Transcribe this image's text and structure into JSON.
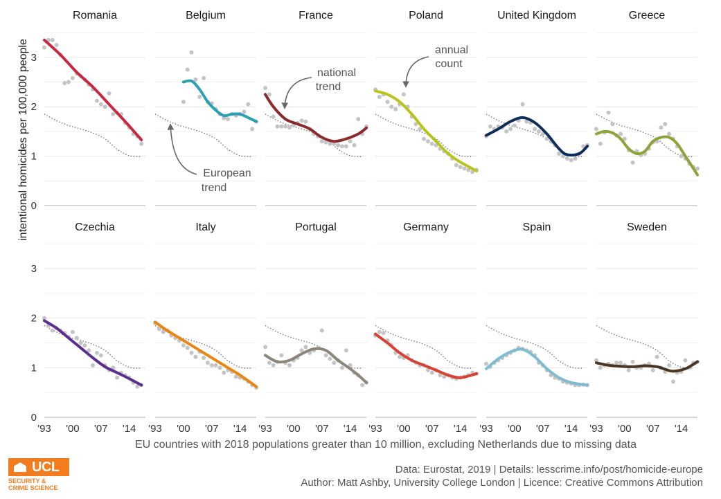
{
  "chart_data": {
    "type": "line",
    "layout": "small multiples, 6 columns x 2 rows",
    "ylabel": "intentional homicides per 100,000 people",
    "ylim": [
      0,
      3.6
    ],
    "yticks": [
      0,
      1,
      2,
      3
    ],
    "xlim": [
      1993,
      2018
    ],
    "xticks": [
      "'93",
      "'00",
      "'07",
      "'14"
    ],
    "grid": true,
    "european_trend": {
      "x": [
        1993,
        1996,
        1999,
        2002,
        2005,
        2008,
        2011,
        2014,
        2017
      ],
      "y": [
        1.85,
        1.72,
        1.62,
        1.55,
        1.47,
        1.35,
        1.14,
        1.01,
        0.99
      ]
    },
    "annotations": [
      {
        "panel": "Belgium",
        "text": [
          "European",
          "trend"
        ]
      },
      {
        "panel": "France",
        "text": [
          "national",
          "trend"
        ]
      },
      {
        "panel": "Poland",
        "text": [
          "annual",
          "count"
        ]
      }
    ],
    "series": [
      {
        "name": "Romania",
        "color": "#c8283e",
        "trend": {
          "x": [
            1993,
            1997,
            2001,
            2005,
            2009,
            2013,
            2017
          ],
          "y": [
            3.35,
            3.05,
            2.7,
            2.4,
            2.05,
            1.7,
            1.33
          ]
        },
        "points": {
          "x": [
            1993,
            1994,
            1995,
            1996,
            1997,
            1998,
            1999,
            2000,
            2001,
            2002,
            2003,
            2004,
            2005,
            2006,
            2007,
            2008,
            2009,
            2010,
            2011,
            2012,
            2013,
            2014,
            2015,
            2016,
            2017
          ],
          "y": [
            3.2,
            3.35,
            3.35,
            3.25,
            3.05,
            2.48,
            2.5,
            2.58,
            2.67,
            2.62,
            2.55,
            2.45,
            2.35,
            2.12,
            2.05,
            2.0,
            2.27,
            1.85,
            1.88,
            1.85,
            1.67,
            1.58,
            1.45,
            1.4,
            1.25
          ]
        }
      },
      {
        "name": "Belgium",
        "color": "#2aa0b3",
        "trend": {
          "x": [
            2000,
            2002,
            2004,
            2006,
            2008,
            2010,
            2012,
            2014,
            2016,
            2018
          ],
          "y": [
            2.5,
            2.52,
            2.35,
            2.1,
            1.93,
            1.82,
            1.85,
            1.85,
            1.78,
            1.7
          ]
        },
        "points": {
          "x": [
            2000,
            2001,
            2002,
            2003,
            2004,
            2005,
            2006,
            2007,
            2008,
            2009,
            2010,
            2011,
            2012,
            2013,
            2014,
            2015,
            2016,
            2017,
            2018
          ],
          "y": [
            2.1,
            2.75,
            3.1,
            2.55,
            2.2,
            2.58,
            2.1,
            2.07,
            1.95,
            1.85,
            1.77,
            1.75,
            1.85,
            1.82,
            1.85,
            1.9,
            2.05,
            1.55,
            1.7
          ]
        }
      },
      {
        "name": "France",
        "color": "#8b2a2c",
        "trend": {
          "x": [
            1993,
            1995,
            1998,
            2001,
            2004,
            2007,
            2010,
            2013,
            2016,
            2018
          ],
          "y": [
            2.25,
            2.0,
            1.75,
            1.65,
            1.55,
            1.38,
            1.3,
            1.35,
            1.45,
            1.57
          ]
        },
        "points": {
          "x": [
            1993,
            1994,
            1995,
            1996,
            1997,
            1998,
            1999,
            2000,
            2001,
            2002,
            2003,
            2004,
            2005,
            2006,
            2007,
            2008,
            2009,
            2010,
            2011,
            2012,
            2013,
            2014,
            2015,
            2016,
            2017,
            2018
          ],
          "y": [
            2.38,
            2.25,
            1.8,
            1.6,
            1.6,
            1.6,
            1.58,
            1.62,
            1.67,
            1.72,
            1.7,
            1.55,
            1.45,
            1.4,
            1.3,
            1.28,
            1.25,
            1.25,
            1.22,
            1.2,
            1.2,
            1.3,
            1.22,
            1.75,
            1.45,
            1.6
          ]
        }
      },
      {
        "name": "Poland",
        "color": "#b9c41b",
        "trend": {
          "x": [
            1993,
            1996,
            1999,
            2002,
            2005,
            2008,
            2011,
            2014,
            2018
          ],
          "y": [
            2.32,
            2.25,
            2.1,
            1.85,
            1.55,
            1.3,
            1.05,
            0.88,
            0.7
          ]
        },
        "points": {
          "x": [
            1993,
            1994,
            1995,
            1996,
            1997,
            1998,
            1999,
            2000,
            2001,
            2002,
            2003,
            2004,
            2005,
            2006,
            2007,
            2008,
            2009,
            2010,
            2011,
            2012,
            2013,
            2014,
            2015,
            2016,
            2017,
            2018
          ],
          "y": [
            2.35,
            2.2,
            2.25,
            2.1,
            2.0,
            1.95,
            2.05,
            2.25,
            2.0,
            1.8,
            1.65,
            1.55,
            1.35,
            1.3,
            1.25,
            1.22,
            1.15,
            1.1,
            1.05,
            0.95,
            0.82,
            0.78,
            0.75,
            0.72,
            0.68,
            0.72
          ]
        }
      },
      {
        "name": "United Kingdom",
        "color": "#0f2c5a",
        "trend": {
          "x": [
            1993,
            1996,
            1999,
            2002,
            2005,
            2008,
            2011,
            2013,
            2016,
            2018
          ],
          "y": [
            1.42,
            1.55,
            1.7,
            1.78,
            1.68,
            1.45,
            1.15,
            1.03,
            1.05,
            1.2
          ]
        },
        "points": {
          "x": [
            1993,
            1994,
            1995,
            1996,
            1997,
            1998,
            1999,
            2000,
            2001,
            2002,
            2003,
            2004,
            2005,
            2006,
            2007,
            2008,
            2009,
            2010,
            2011,
            2012,
            2013,
            2014,
            2015,
            2016,
            2017,
            2018
          ],
          "y": [
            1.4,
            1.6,
            1.55,
            1.6,
            1.58,
            1.5,
            1.55,
            1.62,
            1.72,
            2.05,
            1.7,
            1.68,
            1.55,
            1.5,
            1.45,
            1.35,
            1.3,
            1.22,
            1.05,
            1.0,
            0.95,
            0.92,
            0.95,
            1.05,
            1.2,
            1.22
          ]
        }
      },
      {
        "name": "Greece",
        "color": "#8ca43a",
        "trend": {
          "x": [
            1993,
            1995,
            1997,
            1999,
            2001,
            2003,
            2005,
            2007,
            2009,
            2011,
            2013,
            2015,
            2017,
            2018
          ],
          "y": [
            1.45,
            1.5,
            1.47,
            1.35,
            1.15,
            1.05,
            1.1,
            1.3,
            1.38,
            1.38,
            1.25,
            1.0,
            0.75,
            0.62
          ]
        },
        "points": {
          "x": [
            1993,
            1994,
            1995,
            1996,
            1997,
            1998,
            1999,
            2000,
            2001,
            2002,
            2003,
            2004,
            2005,
            2006,
            2007,
            2008,
            2009,
            2010,
            2011,
            2012,
            2013,
            2014,
            2015,
            2016,
            2017,
            2018
          ],
          "y": [
            1.55,
            1.25,
            1.48,
            1.88,
            1.65,
            1.42,
            1.45,
            1.35,
            1.12,
            0.87,
            1.1,
            1.02,
            1.05,
            1.15,
            1.28,
            1.3,
            1.58,
            1.65,
            1.45,
            1.35,
            1.2,
            1.0,
            0.95,
            0.85,
            0.78,
            0.75
          ]
        }
      },
      {
        "name": "Czechia",
        "color": "#5a2d8f",
        "trend": {
          "x": [
            1993,
            1996,
            1999,
            2002,
            2005,
            2008,
            2011,
            2014,
            2017
          ],
          "y": [
            1.95,
            1.8,
            1.6,
            1.4,
            1.2,
            1.02,
            0.9,
            0.78,
            0.65
          ]
        },
        "points": {
          "x": [
            1993,
            1994,
            1995,
            1996,
            1997,
            1998,
            1999,
            2000,
            2001,
            2002,
            2003,
            2004,
            2005,
            2006,
            2007,
            2008,
            2009,
            2010,
            2011,
            2012,
            2013,
            2014,
            2015,
            2016,
            2017
          ],
          "y": [
            2.0,
            1.85,
            1.75,
            1.8,
            1.75,
            1.7,
            1.62,
            1.72,
            1.6,
            1.5,
            1.45,
            1.35,
            1.05,
            1.3,
            1.25,
            1.05,
            0.95,
            1.0,
            0.8,
            0.9,
            0.85,
            0.8,
            0.7,
            0.62,
            0.65
          ]
        }
      },
      {
        "name": "Italy",
        "color": "#ea8512",
        "trend": {
          "x": [
            1993,
            1996,
            1999,
            2002,
            2005,
            2008,
            2011,
            2014,
            2018
          ],
          "y": [
            1.92,
            1.75,
            1.6,
            1.45,
            1.3,
            1.15,
            1.0,
            0.85,
            0.62
          ]
        },
        "points": {
          "x": [
            1993,
            1994,
            1995,
            1996,
            1997,
            1998,
            1999,
            2000,
            2001,
            2002,
            2003,
            2004,
            2005,
            2006,
            2007,
            2008,
            2009,
            2010,
            2011,
            2012,
            2013,
            2014,
            2015,
            2016,
            2017,
            2018
          ],
          "y": [
            1.9,
            1.78,
            1.72,
            1.75,
            1.65,
            1.6,
            1.55,
            1.45,
            1.4,
            1.3,
            1.22,
            1.32,
            1.2,
            1.1,
            1.05,
            1.05,
            1.0,
            0.9,
            0.95,
            0.92,
            0.82,
            0.8,
            0.78,
            0.72,
            0.65,
            0.6
          ]
        }
      },
      {
        "name": "Portugal",
        "color": "#8c8579",
        "trend": {
          "x": [
            1993,
            1996,
            1999,
            2002,
            2005,
            2008,
            2011,
            2014,
            2016,
            2018
          ],
          "y": [
            1.25,
            1.12,
            1.15,
            1.28,
            1.38,
            1.35,
            1.15,
            0.98,
            0.85,
            0.7
          ]
        },
        "points": {
          "x": [
            1993,
            1994,
            1995,
            1996,
            1997,
            1998,
            1999,
            2000,
            2001,
            2002,
            2003,
            2004,
            2005,
            2006,
            2007,
            2008,
            2009,
            2010,
            2011,
            2012,
            2013,
            2014,
            2015,
            2016,
            2017,
            2018
          ],
          "y": [
            1.42,
            1.1,
            1.05,
            1.12,
            1.25,
            1.1,
            1.05,
            1.15,
            1.2,
            1.35,
            1.42,
            1.3,
            1.35,
            1.4,
            1.75,
            1.25,
            1.18,
            1.1,
            1.15,
            1.0,
            1.35,
            1.05,
            0.9,
            0.85,
            0.65,
            0.7
          ]
        }
      },
      {
        "name": "Germany",
        "color": "#d84136",
        "trend": {
          "x": [
            1993,
            1996,
            1999,
            2002,
            2005,
            2008,
            2011,
            2014,
            2018
          ],
          "y": [
            1.68,
            1.5,
            1.3,
            1.15,
            1.05,
            0.95,
            0.85,
            0.8,
            0.88
          ]
        },
        "points": {
          "x": [
            1993,
            1994,
            1995,
            1996,
            1997,
            1998,
            1999,
            2000,
            2001,
            2002,
            2003,
            2004,
            2005,
            2006,
            2007,
            2008,
            2009,
            2010,
            2011,
            2012,
            2013,
            2014,
            2015,
            2016,
            2017,
            2018
          ],
          "y": [
            1.65,
            1.72,
            1.7,
            1.55,
            1.45,
            1.3,
            1.22,
            1.2,
            1.25,
            1.15,
            1.1,
            1.05,
            1.05,
            0.95,
            0.9,
            0.95,
            0.85,
            0.82,
            0.85,
            0.8,
            0.78,
            0.8,
            0.82,
            0.85,
            0.9,
            0.88
          ]
        }
      },
      {
        "name": "Spain",
        "color": "#7fbcd2",
        "trend": {
          "x": [
            1993,
            1996,
            1999,
            2002,
            2005,
            2008,
            2011,
            2014,
            2018
          ],
          "y": [
            0.98,
            1.18,
            1.32,
            1.37,
            1.22,
            0.98,
            0.8,
            0.7,
            0.65
          ]
        },
        "points": {
          "x": [
            1993,
            1994,
            1995,
            1996,
            1997,
            1998,
            1999,
            2000,
            2001,
            2002,
            2003,
            2004,
            2005,
            2006,
            2007,
            2008,
            2009,
            2010,
            2011,
            2012,
            2013,
            2014,
            2015,
            2016,
            2017,
            2018
          ],
          "y": [
            1.08,
            1.02,
            1.1,
            1.15,
            1.2,
            1.25,
            1.3,
            1.35,
            1.4,
            1.38,
            1.35,
            1.32,
            1.25,
            1.1,
            1.05,
            0.95,
            0.85,
            0.8,
            0.78,
            0.72,
            0.7,
            0.68,
            0.65,
            0.65,
            0.66,
            0.65
          ]
        }
      },
      {
        "name": "Sweden",
        "color": "#4a3524",
        "trend": {
          "x": [
            1993,
            1996,
            1999,
            2002,
            2005,
            2008,
            2010,
            2012,
            2015,
            2018
          ],
          "y": [
            1.1,
            1.05,
            1.03,
            1.02,
            1.04,
            1.02,
            0.97,
            0.93,
            0.98,
            1.12
          ]
        },
        "points": {
          "x": [
            1993,
            1994,
            1995,
            1996,
            1997,
            1998,
            1999,
            2000,
            2001,
            2002,
            2003,
            2004,
            2005,
            2006,
            2007,
            2008,
            2009,
            2010,
            2011,
            2012,
            2013,
            2014,
            2015,
            2016,
            2017,
            2018
          ],
          "y": [
            1.15,
            1.0,
            1.05,
            1.08,
            1.05,
            1.1,
            1.1,
            1.05,
            0.95,
            1.12,
            1.0,
            1.0,
            1.05,
            1.08,
            0.95,
            1.22,
            1.0,
            0.92,
            1.05,
            0.72,
            0.9,
            0.92,
            1.15,
            1.0,
            1.1,
            1.12
          ]
        }
      }
    ]
  },
  "footer": {
    "xlabel": "EU countries with 2018 populations greater than 10 million, excluding Netherlands due to missing data",
    "source_line1": "Data: Eurostat, 2019 |  Details: lesscrime.info/post/homicide-europe",
    "source_line2": "Author: Matt Ashby, University College London |  Licence: Creative Commons Attribution",
    "logo_text": "UCL",
    "logo_sub1": "SECURITY &",
    "logo_sub2": "CRIME SCIENCE",
    "brand_color": "#f27c1e"
  }
}
